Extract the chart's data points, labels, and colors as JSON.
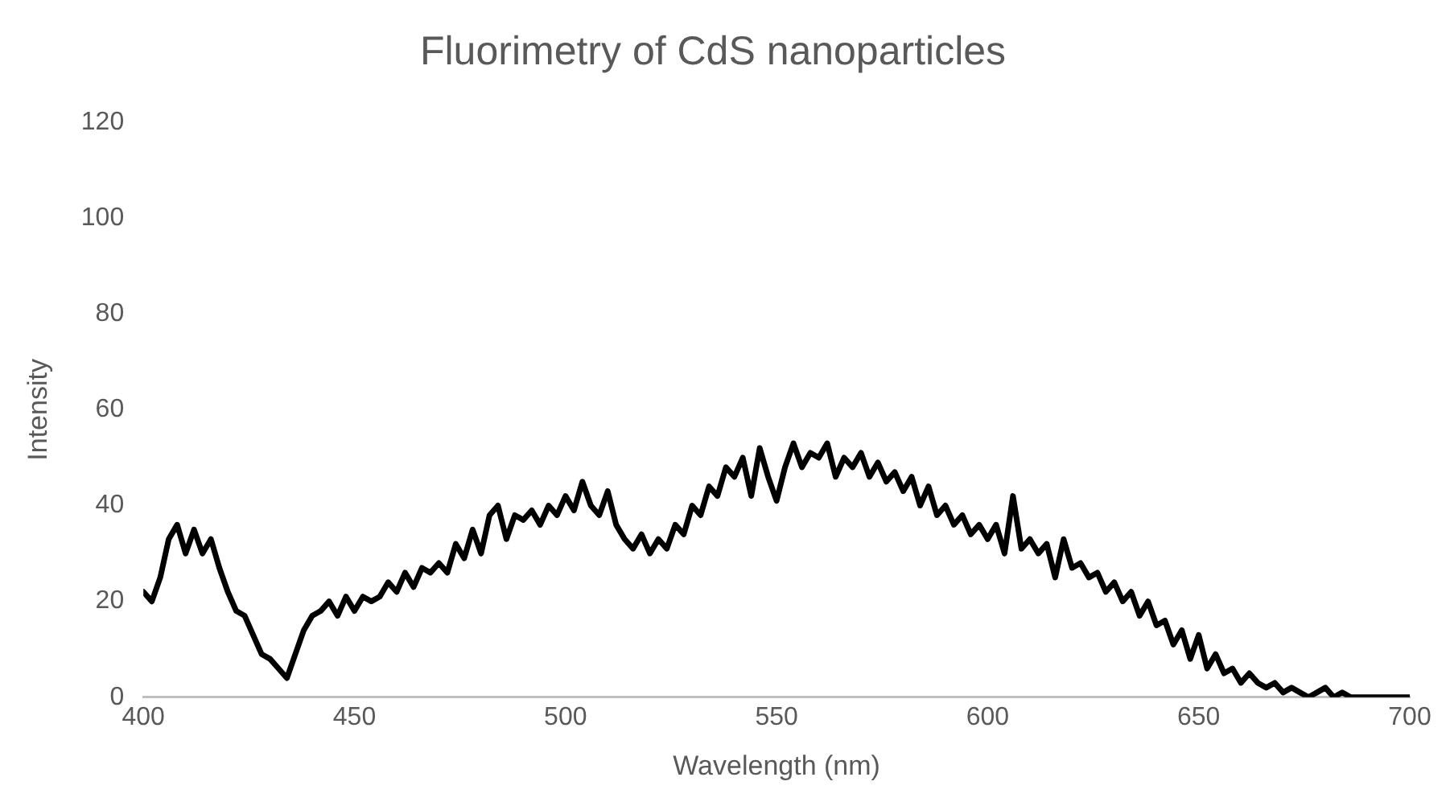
{
  "chart_data": {
    "type": "line",
    "title": "Fluorimetry of CdS nanoparticles",
    "xlabel": "Wavelength (nm)",
    "ylabel": "Intensity",
    "x": [
      400,
      402,
      404,
      406,
      408,
      410,
      412,
      414,
      416,
      418,
      420,
      422,
      424,
      426,
      428,
      430,
      432,
      434,
      436,
      438,
      440,
      442,
      444,
      446,
      448,
      450,
      452,
      454,
      456,
      458,
      460,
      462,
      464,
      466,
      468,
      470,
      472,
      474,
      476,
      478,
      480,
      482,
      484,
      486,
      488,
      490,
      492,
      494,
      496,
      498,
      500,
      502,
      504,
      506,
      508,
      510,
      512,
      514,
      516,
      518,
      520,
      522,
      524,
      526,
      528,
      530,
      532,
      534,
      536,
      538,
      540,
      542,
      544,
      546,
      548,
      550,
      552,
      554,
      556,
      558,
      560,
      562,
      564,
      566,
      568,
      570,
      572,
      574,
      576,
      578,
      580,
      582,
      584,
      586,
      588,
      590,
      592,
      594,
      596,
      598,
      600,
      602,
      604,
      606,
      608,
      610,
      612,
      614,
      616,
      618,
      620,
      622,
      624,
      626,
      628,
      630,
      632,
      634,
      636,
      638,
      640,
      642,
      644,
      646,
      648,
      650,
      652,
      654,
      656,
      658,
      660,
      662,
      664,
      666,
      668,
      670,
      672,
      674,
      676,
      678,
      680,
      682,
      684,
      686,
      690,
      694,
      698,
      700
    ],
    "series": [
      {
        "color": "#000000",
        "values": [
          22,
          20,
          25,
          33,
          36,
          30,
          35,
          30,
          33,
          27,
          22,
          18,
          17,
          13,
          9,
          8,
          6,
          4,
          9,
          14,
          17,
          18,
          20,
          17,
          21,
          18,
          21,
          20,
          21,
          24,
          22,
          26,
          23,
          27,
          26,
          28,
          26,
          32,
          29,
          35,
          30,
          38,
          40,
          33,
          38,
          37,
          39,
          36,
          40,
          38,
          42,
          39,
          45,
          40,
          38,
          43,
          36,
          33,
          31,
          34,
          30,
          33,
          31,
          36,
          34,
          40,
          38,
          44,
          42,
          48,
          46,
          50,
          42,
          52,
          46,
          41,
          48,
          53,
          48,
          51,
          50,
          53,
          46,
          50,
          48,
          51,
          46,
          49,
          45,
          47,
          43,
          46,
          40,
          44,
          38,
          40,
          36,
          38,
          34,
          36,
          33,
          36,
          30,
          42,
          31,
          33,
          30,
          32,
          25,
          33,
          27,
          28,
          25,
          26,
          22,
          24,
          20,
          22,
          17,
          20,
          15,
          16,
          11,
          14,
          8,
          13,
          6,
          9,
          5,
          6,
          3,
          5,
          3,
          2,
          3,
          1,
          2,
          1,
          0,
          1,
          2,
          0,
          1,
          0,
          0,
          0,
          0,
          0
        ]
      }
    ],
    "xlim": [
      400,
      700
    ],
    "xticks": [
      400,
      450,
      500,
      550,
      600,
      650,
      700
    ],
    "ylim": [
      0,
      120
    ],
    "yticks": [
      0,
      20,
      40,
      60,
      80,
      100,
      120
    ],
    "grid": false,
    "legend": false,
    "marker": "none",
    "line_style": "solid"
  }
}
